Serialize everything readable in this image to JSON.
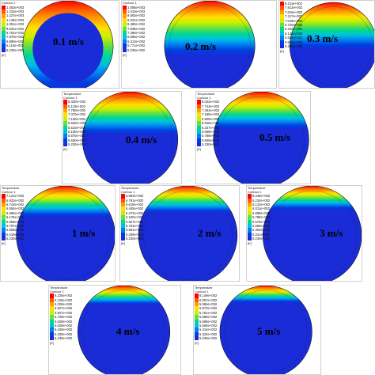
{
  "panels": [
    {
      "speed": "0.1 m/s",
      "legend_title": "Contour 1",
      "legend": [
        "1.403e+003",
        "1.315e+003",
        "1.227e+003",
        "1.139e+003",
        "1.051e+003",
        "9.631e+002",
        "8.751e+002",
        "7.870e+002",
        "6.990e+002",
        "6.110e+002",
        "5.230e+002"
      ],
      "unit": "[K]"
    },
    {
      "speed": "0.2 m/s",
      "legend_title": "Contour 1",
      "legend": [
        "1.065e+003",
        "1.010e+003",
        "9.563e+002",
        "9.021e+002",
        "8.480e+002",
        "7.938e+002",
        "7.396e+002",
        "6.855e+002",
        "6.313e+002",
        "5.771e+002",
        "5.230e+002"
      ],
      "unit": "[K]"
    },
    {
      "speed": "0.3 m/s",
      "legend_title": "",
      "legend": [
        "8.211e+002",
        "7.913e+002",
        "7.615e+002",
        "7.317e+002",
        "7.019e+002",
        "6.720e+002",
        "6.422e+002",
        "6.124e+002",
        "5.826e+002",
        "5.528e+002",
        "5.230e+002"
      ],
      "unit": "[K]"
    },
    {
      "speed": "0.4 m/s",
      "legend_title": "Temperature\nContour 1",
      "legend": [
        "8.430e+002",
        "8.110e+002",
        "7.790e+002",
        "7.470e+002",
        "7.150e+002",
        "6.830e+002",
        "6.510e+002",
        "6.190e+002",
        "5.870e+002",
        "5.550e+002",
        "5.230e+002"
      ],
      "unit": "[K]"
    },
    {
      "speed": "0.5 m/s",
      "legend_title": "Temperature\nContour 1",
      "legend": [
        "8.022e+002",
        "7.743e+002",
        "7.464e+002",
        "7.185e+002",
        "6.905e+002",
        "6.626e+002",
        "6.347e+002",
        "6.068e+002",
        "5.788e+002",
        "5.509e+002",
        "5.230e+002"
      ],
      "unit": "[K]"
    },
    {
      "speed": "1 m/s",
      "legend_title": "Temperature\nContour 1",
      "legend": [
        "7.121e+002",
        "6.932e+002",
        "6.743e+002",
        "6.554e+002",
        "6.365e+002",
        "6.176e+002",
        "5.986e+002",
        "5.797e+002",
        "5.608e+002",
        "5.419e+002",
        "5.230e+002"
      ],
      "unit": "[K]"
    },
    {
      "speed": "2 m/s",
      "legend_title": "Temperature\nContour 1",
      "legend": [
        "6.963e+002",
        "6.791e+002",
        "6.618e+002",
        "6.445e+002",
        "6.272e+002",
        "6.100e+002",
        "5.927e+002",
        "5.754e+002",
        "5.581e+002",
        "5.409e+002",
        "5.230e+002"
      ],
      "unit": "[K]"
    },
    {
      "speed": "3 m/s",
      "legend_title": "Temperature\nContour 1",
      "legend": [
        "6.345e+002",
        "6.234e+002",
        "6.122e+002",
        "6.011e+002",
        "5.899e+002",
        "5.788e+002",
        "5.676e+002",
        "5.565e+002",
        "5.453e+002",
        "5.341e+002",
        "5.230e+002"
      ],
      "unit": "[K]"
    },
    {
      "speed": "4 m/s",
      "legend_title": "Temperature\nContour 1",
      "legend": [
        "6.225e+002",
        "6.126e+002",
        "6.026e+002",
        "5.927e+002",
        "5.827e+002",
        "5.728e+002",
        "5.628e+002",
        "5.529e+002",
        "5.429e+002",
        "5.330e+002",
        "5.230e+002"
      ],
      "unit": "[K]"
    },
    {
      "speed": "5 m/s",
      "legend_title": "Temperature\nContour 1",
      "legend": [
        "6.149e+002",
        "6.057e+002",
        "5.965e+002",
        "5.873e+002",
        "5.781e+002",
        "5.689e+002",
        "5.598e+002",
        "5.506e+002",
        "5.414e+002",
        "5.322e+002",
        "5.230e+002"
      ],
      "unit": "[K]"
    }
  ],
  "colors": {
    "scale": [
      "#ff0000",
      "#ff5a00",
      "#ffa000",
      "#ffe000",
      "#c8f000",
      "#66e040",
      "#00d890",
      "#00c0e0",
      "#0080f0",
      "#0040e0",
      "#1a2bd8"
    ],
    "cold": "#1a2bd8"
  }
}
